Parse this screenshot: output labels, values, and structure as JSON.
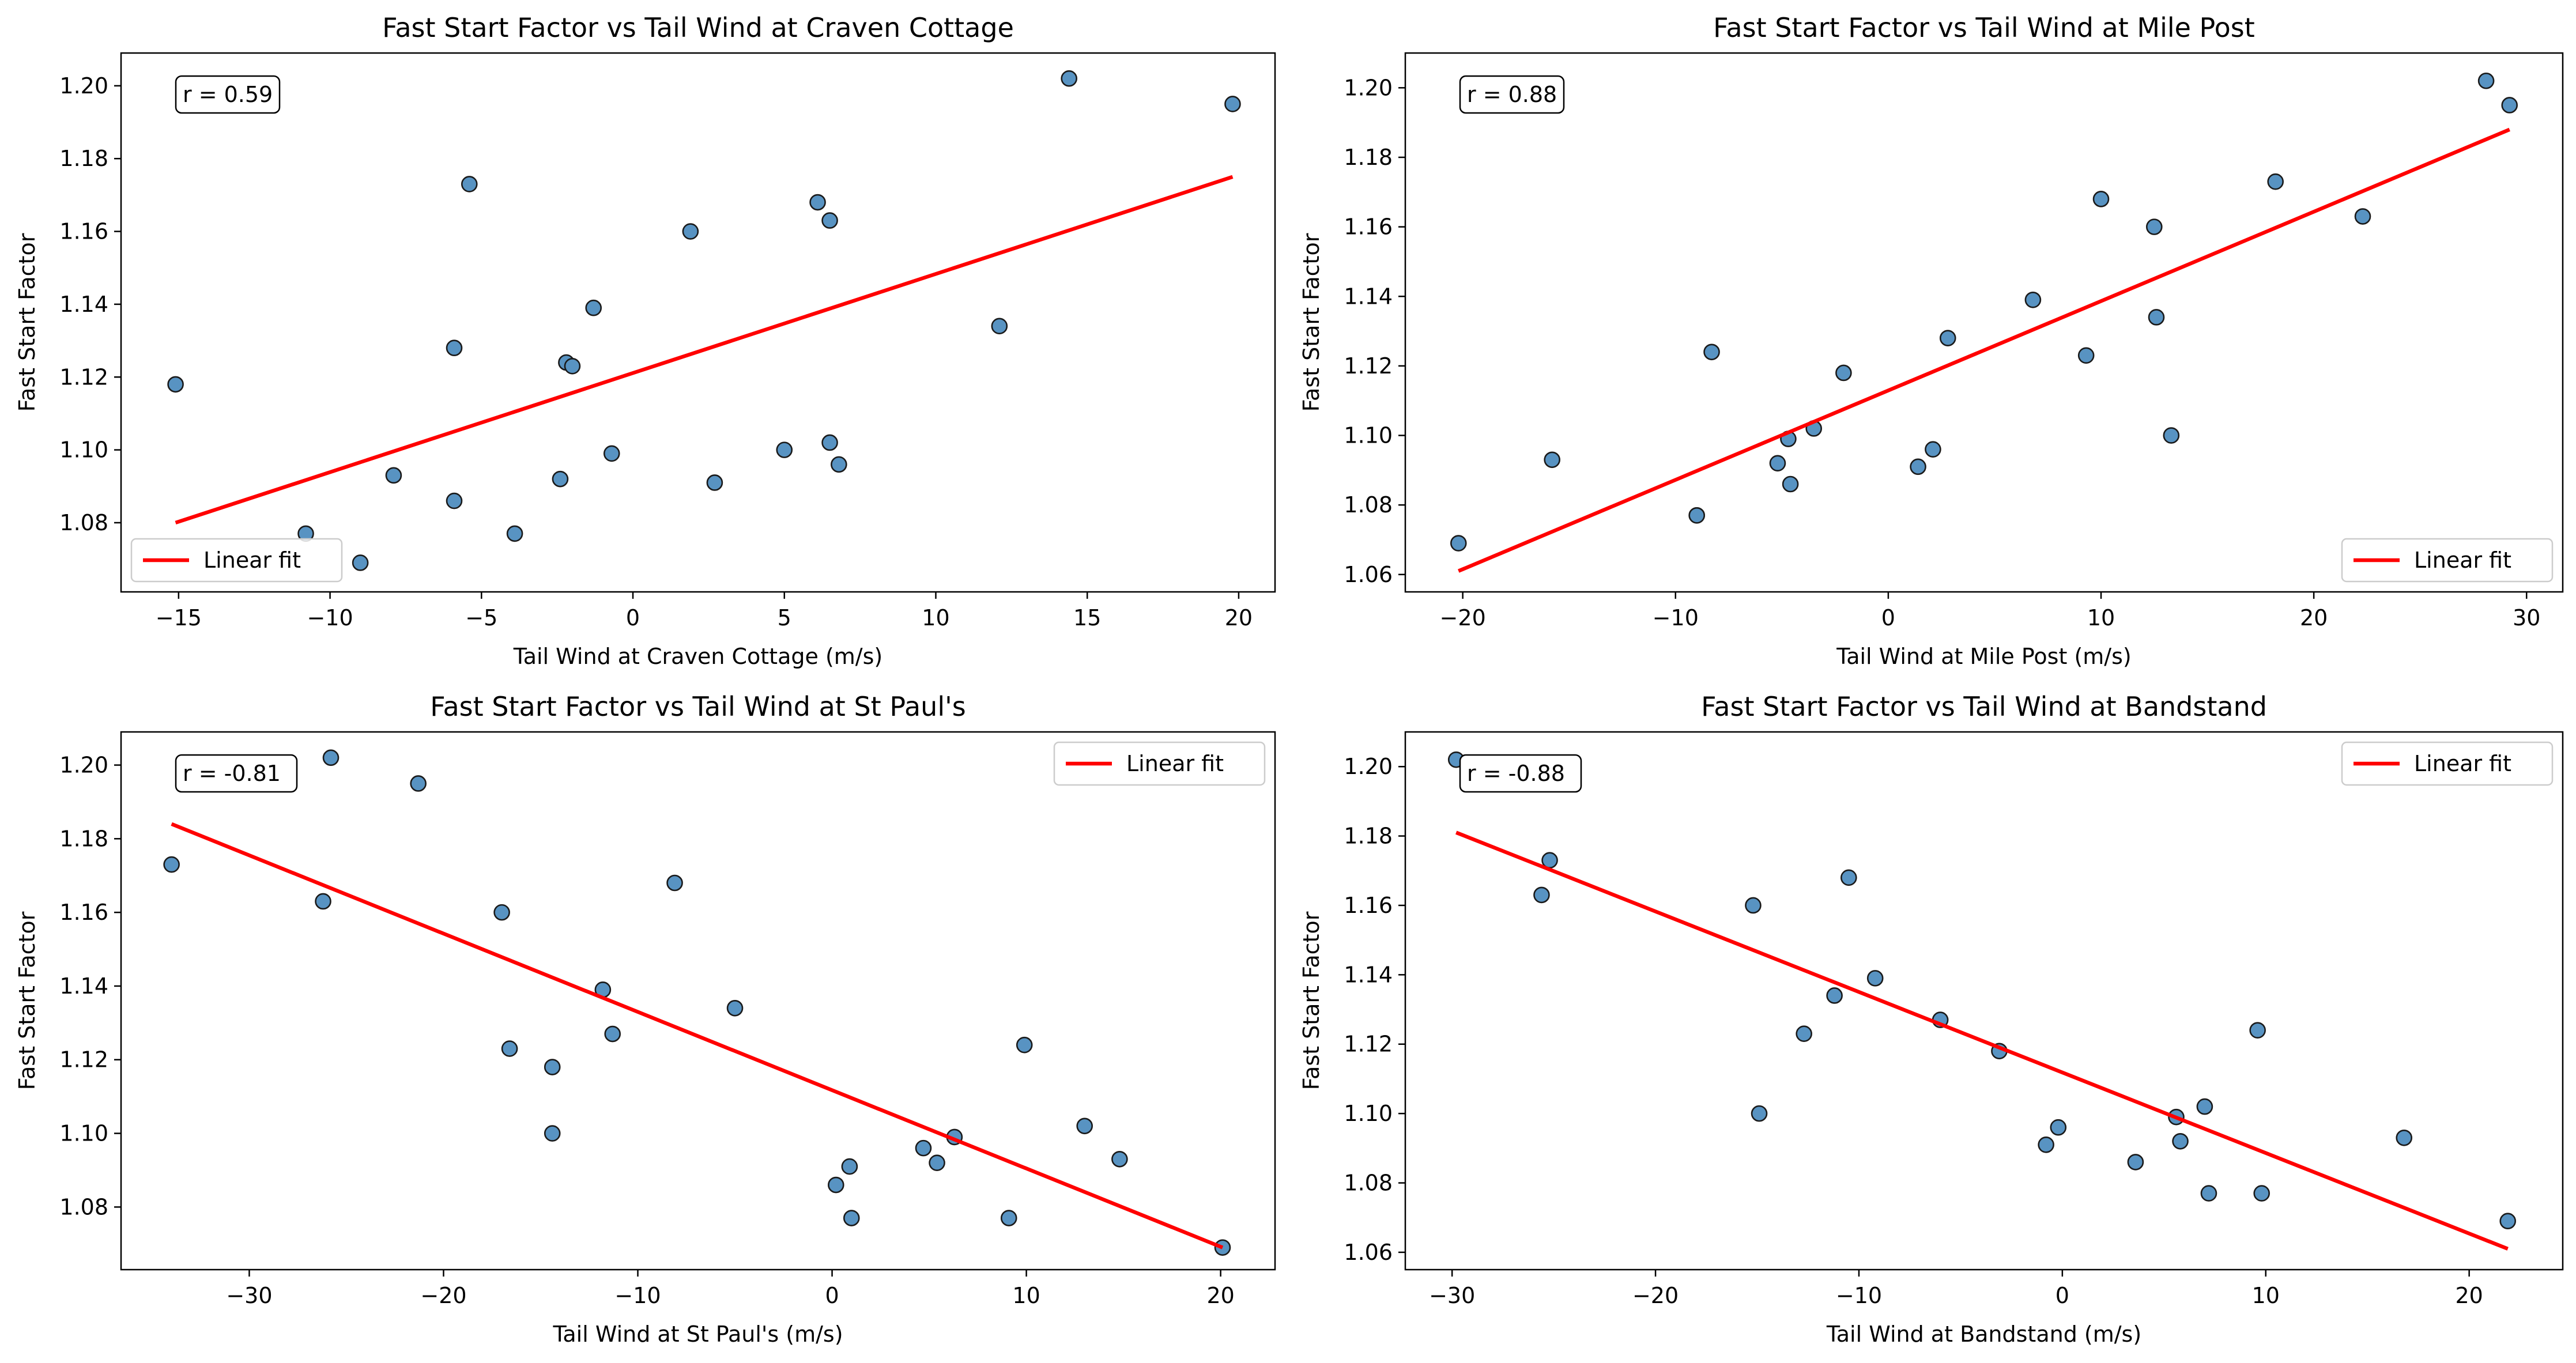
{
  "chart_data": [
    {
      "type": "scatter",
      "title": "Fast Start Factor vs Tail Wind at Craven Cottage",
      "xlabel": "Tail Wind at Craven Cottage (m/s)",
      "ylabel": "Fast Start Factor",
      "xlim": [
        -16.9,
        21.2
      ],
      "ylim": [
        1.061,
        1.209
      ],
      "xticks": [
        -15,
        -10,
        -5,
        0,
        5,
        10,
        15,
        20
      ],
      "yticks": [
        1.08,
        1.1,
        1.12,
        1.14,
        1.16,
        1.18,
        1.2
      ],
      "annotation": "r = 0.59",
      "legend": {
        "label": "Linear fit",
        "position": "lower-left"
      },
      "series": [
        {
          "kind": "points",
          "x": [
            -15.1,
            -10.8,
            -9.0,
            -7.9,
            -5.9,
            -5.9,
            -5.4,
            -3.9,
            -2.4,
            -2.2,
            -2.0,
            -1.3,
            -0.7,
            1.9,
            2.7,
            5.0,
            6.1,
            6.5,
            6.5,
            6.8,
            12.1,
            14.4,
            19.8
          ],
          "y": [
            1.118,
            1.077,
            1.069,
            1.093,
            1.128,
            1.086,
            1.173,
            1.077,
            1.092,
            1.124,
            1.123,
            1.139,
            1.099,
            1.16,
            1.091,
            1.1,
            1.168,
            1.163,
            1.102,
            1.096,
            1.134,
            1.202,
            1.195
          ]
        },
        {
          "kind": "fit",
          "name": "Linear fit",
          "x": [
            -15.1,
            19.8
          ],
          "y": [
            1.08,
            1.175
          ]
        }
      ]
    },
    {
      "type": "scatter",
      "title": "Fast Start Factor vs Tail Wind at Mile Post",
      "xlabel": "Tail Wind at Mile Post (m/s)",
      "ylabel": "Fast Start Factor",
      "xlim": [
        -22.7,
        31.7
      ],
      "ylim": [
        1.055,
        1.21
      ],
      "xticks": [
        -20,
        -10,
        0,
        10,
        20,
        30
      ],
      "yticks": [
        1.06,
        1.08,
        1.1,
        1.12,
        1.14,
        1.16,
        1.18,
        1.2
      ],
      "annotation": "r = 0.88",
      "legend": {
        "label": "Linear fit",
        "position": "lower-right"
      },
      "series": [
        {
          "kind": "points",
          "x": [
            -20.2,
            -15.8,
            -9.0,
            -9.0,
            -8.3,
            -5.2,
            -4.7,
            -4.6,
            -3.5,
            -2.1,
            1.4,
            2.1,
            2.8,
            6.8,
            9.3,
            10.0,
            12.5,
            12.6,
            13.3,
            18.2,
            22.3,
            28.1,
            29.2
          ],
          "y": [
            1.069,
            1.093,
            1.077,
            1.077,
            1.124,
            1.092,
            1.099,
            1.086,
            1.102,
            1.118,
            1.091,
            1.096,
            1.128,
            1.139,
            1.123,
            1.168,
            1.16,
            1.134,
            1.1,
            1.173,
            1.163,
            1.202,
            1.195
          ]
        },
        {
          "kind": "fit",
          "name": "Linear fit",
          "x": [
            -20.2,
            29.2
          ],
          "y": [
            1.061,
            1.188
          ]
        }
      ]
    },
    {
      "type": "scatter",
      "title": "Fast Start Factor vs Tail Wind at St Paul's",
      "xlabel": "Tail Wind at St Paul's (m/s)",
      "ylabel": "Fast Start Factor",
      "xlim": [
        -36.6,
        22.8
      ],
      "ylim": [
        1.063,
        1.209
      ],
      "xticks": [
        -30,
        -20,
        -10,
        0,
        10,
        20
      ],
      "yticks": [
        1.08,
        1.1,
        1.12,
        1.14,
        1.16,
        1.18,
        1.2
      ],
      "annotation": "r = -0.81",
      "legend": {
        "label": "Linear fit",
        "position": "upper-right"
      },
      "series": [
        {
          "kind": "points",
          "x": [
            -34.0,
            -26.2,
            -25.8,
            -21.3,
            -17.0,
            -16.6,
            -14.4,
            -14.4,
            -11.8,
            -11.3,
            -8.1,
            -5.0,
            0.2,
            0.9,
            1.0,
            4.7,
            5.4,
            6.3,
            9.1,
            9.9,
            13.0,
            14.8,
            20.1
          ],
          "y": [
            1.173,
            1.163,
            1.202,
            1.195,
            1.16,
            1.123,
            1.118,
            1.1,
            1.139,
            1.127,
            1.168,
            1.134,
            1.086,
            1.091,
            1.077,
            1.096,
            1.092,
            1.099,
            1.077,
            1.124,
            1.102,
            1.093,
            1.069
          ]
        },
        {
          "kind": "fit",
          "name": "Linear fit",
          "x": [
            -34.0,
            20.1
          ],
          "y": [
            1.184,
            1.069
          ]
        }
      ]
    },
    {
      "type": "scatter",
      "title": "Fast Start Factor vs Tail Wind at Bandstand",
      "xlabel": "Tail Wind at Bandstand (m/s)",
      "ylabel": "Fast Start Factor",
      "xlim": [
        -32.3,
        24.6
      ],
      "ylim": [
        1.055,
        1.21
      ],
      "xticks": [
        -30,
        -20,
        -10,
        0,
        10,
        20
      ],
      "yticks": [
        1.06,
        1.08,
        1.1,
        1.12,
        1.14,
        1.16,
        1.18,
        1.2
      ],
      "annotation": "r = -0.88",
      "legend": {
        "label": "Linear fit",
        "position": "upper-right"
      },
      "series": [
        {
          "kind": "points",
          "x": [
            -29.8,
            -29.2,
            -25.6,
            -25.2,
            -15.2,
            -14.9,
            -10.5,
            -12.7,
            -11.2,
            -9.2,
            -6.0,
            -3.1,
            -0.8,
            -0.2,
            3.6,
            5.6,
            5.8,
            7.0,
            7.2,
            9.6,
            9.8,
            16.8,
            21.9
          ],
          "y": [
            1.202,
            1.195,
            1.163,
            1.173,
            1.16,
            1.1,
            1.168,
            1.123,
            1.134,
            1.139,
            1.127,
            1.118,
            1.091,
            1.096,
            1.086,
            1.099,
            1.092,
            1.102,
            1.077,
            1.124,
            1.077,
            1.093,
            1.069
          ]
        },
        {
          "kind": "fit",
          "name": "Linear fit",
          "x": [
            -29.8,
            21.9
          ],
          "y": [
            1.181,
            1.061
          ]
        }
      ]
    }
  ]
}
